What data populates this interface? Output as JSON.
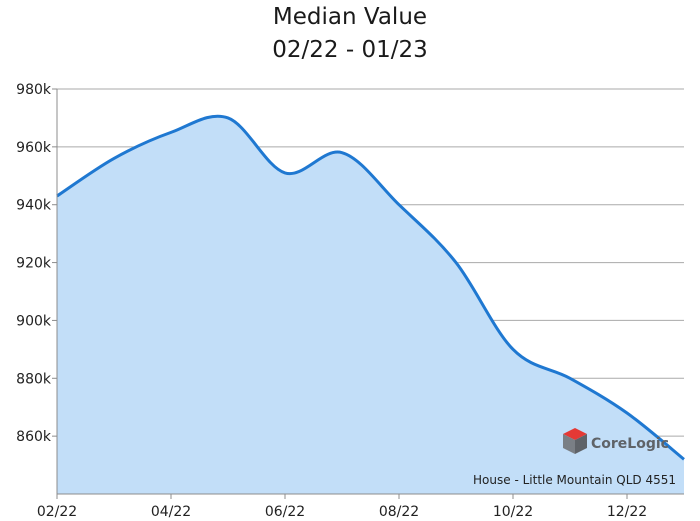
{
  "chart_data": {
    "type": "area",
    "title": "Median Value",
    "subtitle": "02/22 - 01/23",
    "caption": "House - Little Mountain QLD 4551",
    "brand": "CoreLogic",
    "x_tick_labels": [
      "02/22",
      "04/22",
      "06/22",
      "08/22",
      "10/22",
      "12/22"
    ],
    "y_tick_labels": [
      "980k",
      "960k",
      "940k",
      "920k",
      "900k",
      "880k",
      "860k"
    ],
    "ylim": [
      840000,
      980000
    ],
    "grid": true,
    "x": [
      "02/22",
      "03/22",
      "04/22",
      "05/22",
      "06/22",
      "07/22",
      "08/22",
      "09/22",
      "10/22",
      "11/22",
      "12/22",
      "01/23"
    ],
    "series": [
      {
        "values": [
          943000,
          956000,
          965000,
          970000,
          951000,
          958000,
          940000,
          920000,
          890000,
          880000,
          868000,
          852000
        ]
      }
    ],
    "colors": {
      "line": "#1f78d1",
      "fill": "#c2def8",
      "grid": "#aaaaaa",
      "axis": "#8c8c8c",
      "brand_red": "#e53935",
      "brand_grey": "#5f6368"
    }
  }
}
